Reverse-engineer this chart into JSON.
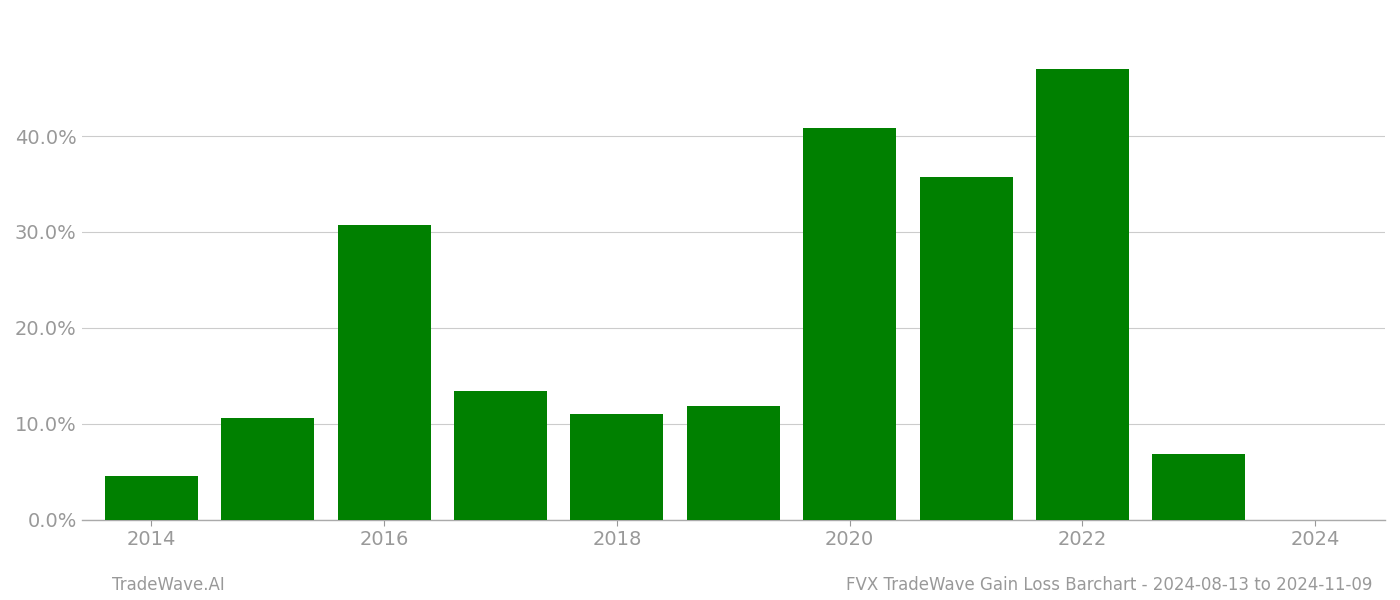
{
  "years": [
    2014,
    2015,
    2016,
    2017,
    2018,
    2019,
    2020,
    2021,
    2022,
    2023
  ],
  "values": [
    0.045,
    0.106,
    0.307,
    0.134,
    0.11,
    0.118,
    0.408,
    0.357,
    0.47,
    0.068
  ],
  "bar_color": "#008000",
  "background_color": "#ffffff",
  "grid_color": "#cccccc",
  "axis_color": "#aaaaaa",
  "tick_color": "#999999",
  "yticks": [
    0.0,
    0.1,
    0.2,
    0.3,
    0.4
  ],
  "xticks": [
    2014,
    2016,
    2018,
    2020,
    2022,
    2024
  ],
  "xlim": [
    2013.4,
    2024.6
  ],
  "ylim": [
    0,
    0.52
  ],
  "footer_left": "TradeWave.AI",
  "footer_right": "FVX TradeWave Gain Loss Barchart - 2024-08-13 to 2024-11-09",
  "bar_width": 0.8,
  "tick_fontsize": 14,
  "footer_fontsize": 12
}
